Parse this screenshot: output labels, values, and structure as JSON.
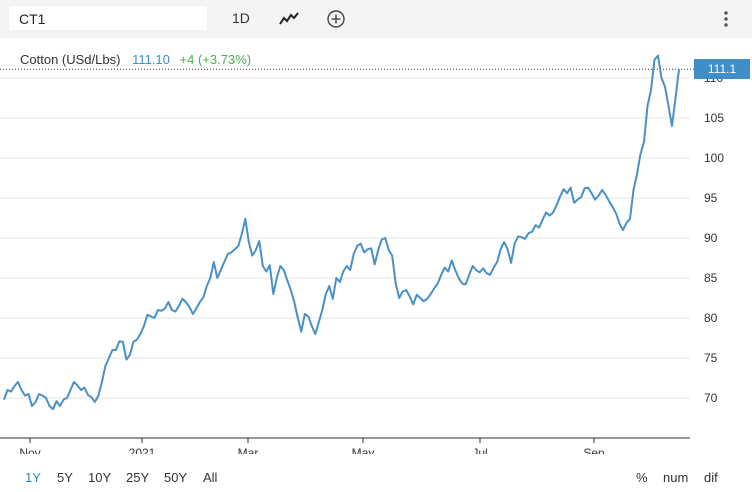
{
  "toolbar": {
    "symbol": "CT1",
    "interval": "1D",
    "icons": [
      "line-chart-icon",
      "add-circle-icon",
      "kebab-menu-icon"
    ]
  },
  "legend": {
    "name": "Cotton (USd/Lbs)",
    "price": "111.10",
    "change": "+4 (+3.73%)"
  },
  "last_price_tag": "111.1",
  "ranges": [
    "1Y",
    "5Y",
    "10Y",
    "25Y",
    "50Y",
    "All"
  ],
  "active_range": "1Y",
  "modes": [
    "%",
    "num",
    "dif"
  ],
  "colors": {
    "line": "#4a90c4",
    "accent": "#2e86c9",
    "tag": "#3f8ec8",
    "change": "#4caf50"
  },
  "chart_data": {
    "type": "line",
    "x_ticks": [
      "Nov",
      "2021",
      "Mar",
      "May",
      "Jul",
      "Sep"
    ],
    "y_ticks": [
      70,
      75,
      80,
      85,
      90,
      95,
      100,
      105,
      110
    ],
    "ylim": [
      65,
      113
    ],
    "series": [
      {
        "values": [
          69.8,
          71,
          70.8,
          71.5,
          72,
          71,
          70.3,
          70.5,
          69,
          69.5,
          70.5,
          70.3,
          70,
          69,
          68.6,
          69.6,
          69,
          69.8,
          70,
          71,
          72,
          71.6,
          71,
          71.3,
          70.4,
          70.1,
          69.5,
          70.3,
          72,
          74,
          75,
          76,
          76,
          77.1,
          77,
          74.8,
          75.4,
          77,
          77.3,
          78,
          79,
          80.4,
          80.2,
          80,
          81,
          80.9,
          81.2,
          82,
          81,
          80.8,
          81.5,
          82.4,
          82,
          81.4,
          80.5,
          81.2,
          82,
          82.6,
          84,
          85,
          87,
          85,
          86,
          87,
          88,
          88.2,
          88.6,
          89,
          90.5,
          92.4,
          89.5,
          87.8,
          88.5,
          89.6,
          86.5,
          85.8,
          86.6,
          83,
          85,
          86.5,
          86,
          84.7,
          83.5,
          82,
          80,
          78.3,
          80.5,
          80.2,
          79,
          78,
          79.5,
          81,
          83,
          84,
          82.4,
          85,
          84.5,
          85.8,
          86.5,
          86,
          88,
          89,
          89.3,
          88.2,
          88.6,
          88.7,
          86.7,
          88.5,
          89.8,
          90,
          88.5,
          87.8,
          84.3,
          82.5,
          83.3,
          83.5,
          82.7,
          81.7,
          82.9,
          82.5,
          82.1,
          82.4,
          83,
          83.7,
          84.3,
          85.4,
          86.3,
          85.8,
          87.2,
          86,
          85,
          84.3,
          84.2,
          85.4,
          86.5,
          86,
          85.7,
          86.2,
          85.6,
          85.4,
          86.3,
          87,
          88.6,
          89.5,
          88.6,
          86.9,
          89.3,
          90.2,
          90.1,
          89.9,
          90.6,
          90.8,
          91.6,
          91.3,
          92.3,
          93.2,
          92.8,
          93.2,
          94.1,
          95.2,
          96.1,
          95.6,
          96.3,
          94.4,
          94.8,
          95.1,
          96.2,
          96.3,
          95.6,
          94.8,
          95.3,
          96,
          95.4,
          94.6,
          93.9,
          93.1,
          91.8,
          91,
          91.9,
          92.4,
          96,
          98,
          100.5,
          102,
          106.5,
          108.5,
          112.3,
          112.8,
          110,
          108.9,
          106.5,
          104,
          107.5,
          111.1
        ]
      }
    ]
  }
}
